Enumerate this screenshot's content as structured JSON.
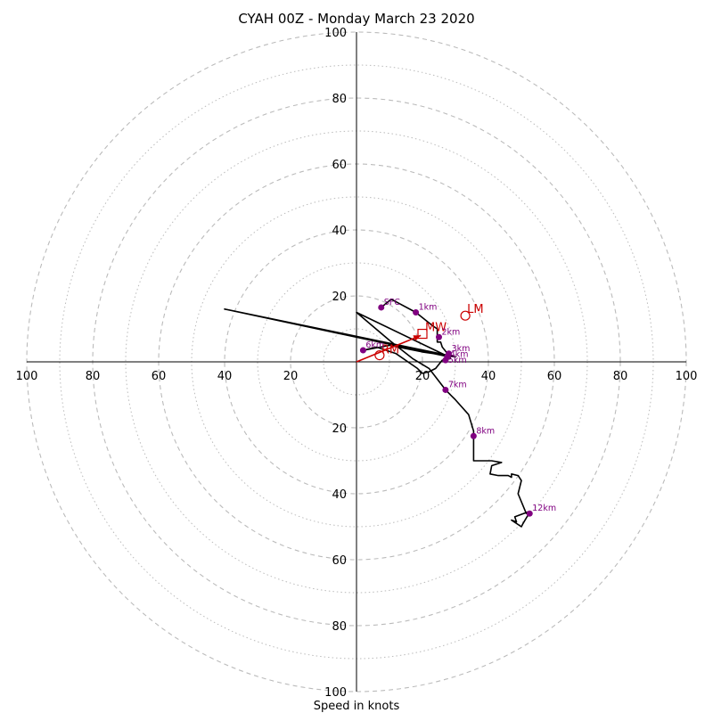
{
  "chart_data": {
    "type": "hodograph",
    "title": "CYAH 00Z - Monday March 23 2020",
    "xlabel": "Speed in knots",
    "ylabel": "",
    "range": [
      -100,
      100
    ],
    "grid": true,
    "rings": {
      "major": [
        20,
        40,
        60,
        80,
        100
      ],
      "minor": [
        10,
        30,
        50,
        70,
        90
      ],
      "major_style": "dashed",
      "minor_style": "dotted"
    },
    "tick_labels": {
      "left": [
        "100",
        "80",
        "60",
        "40",
        "20"
      ],
      "right": [
        "20",
        "40",
        "60",
        "80",
        "100"
      ],
      "top": [
        "100",
        "80",
        "60",
        "40",
        "20"
      ],
      "bottom": [
        "20",
        "40",
        "60",
        "80",
        "100"
      ]
    },
    "hodograph_line": {
      "color": "#000000",
      "points": [
        [
          7.5,
          16.5
        ],
        [
          10.5,
          19.0
        ],
        [
          18.0,
          15.0
        ],
        [
          23.0,
          11.0
        ],
        [
          24.5,
          10.0
        ],
        [
          24.5,
          6.0
        ],
        [
          25.5,
          6.0
        ],
        [
          26.0,
          4.5
        ],
        [
          28.0,
          2.0
        ],
        [
          28.5,
          1.0
        ],
        [
          26.0,
          0.5
        ],
        [
          24.0,
          -2.0
        ],
        [
          22.0,
          -3.0
        ],
        [
          20.0,
          -3.5
        ],
        [
          18.5,
          -2.0
        ],
        [
          12.0,
          2.5
        ],
        [
          6.0,
          4.5
        ],
        [
          2.0,
          3.5
        ],
        [
          10.0,
          5.0
        ],
        [
          20.0,
          3.0
        ],
        [
          27.0,
          2.0
        ],
        [
          30.0,
          1.5
        ],
        [
          -40.0,
          16.0
        ],
        [
          28.0,
          1.5
        ],
        [
          0.0,
          15.0
        ],
        [
          10.0,
          6.5
        ],
        [
          17.0,
          1.0
        ],
        [
          22.0,
          -2.0
        ],
        [
          27.0,
          -8.5
        ],
        [
          30.0,
          -11.5
        ],
        [
          34.0,
          -16.0
        ],
        [
          35.5,
          -21.0
        ],
        [
          35.5,
          -30.0
        ],
        [
          41.0,
          -30.0
        ],
        [
          44.0,
          -30.5
        ],
        [
          41.0,
          -31.5
        ],
        [
          40.5,
          -34.0
        ],
        [
          43.0,
          -34.5
        ],
        [
          46.0,
          -34.5
        ],
        [
          47.0,
          -35.0
        ],
        [
          47.0,
          -34.0
        ],
        [
          49.0,
          -34.5
        ],
        [
          50.0,
          -36.0
        ],
        [
          49.0,
          -40.0
        ],
        [
          51.5,
          -46.0
        ],
        [
          52.0,
          -45.5
        ],
        [
          48.0,
          -47.0
        ],
        [
          48.5,
          -48.5
        ],
        [
          47.0,
          -48.0
        ],
        [
          50.0,
          -50.0
        ],
        [
          50.5,
          -49.0
        ],
        [
          52.0,
          -46.5
        ]
      ]
    },
    "height_markers": [
      {
        "label": "SFC",
        "u": 7.5,
        "v": 16.5
      },
      {
        "label": "1km",
        "u": 18.0,
        "v": 15.0
      },
      {
        "label": "2km",
        "u": 25.0,
        "v": 7.5
      },
      {
        "label": "3km",
        "u": 28.0,
        "v": 2.5
      },
      {
        "label": "4km",
        "u": 27.5,
        "v": 1.5
      },
      {
        "label": "5km",
        "u": 27.0,
        "v": 0.5
      },
      {
        "label": "6km",
        "u": 2.0,
        "v": 3.5
      },
      {
        "label": "7km",
        "u": 27.0,
        "v": -8.5
      },
      {
        "label": "8km",
        "u": 35.5,
        "v": -22.5
      },
      {
        "label": "12km",
        "u": 52.5,
        "v": -46.0
      }
    ],
    "mean_wind": {
      "label": "MW",
      "u": 20.0,
      "v": 8.5,
      "marker": "square"
    },
    "right_mover": {
      "label": "RM",
      "u": 7.0,
      "v": 2.0,
      "marker": "circle"
    },
    "left_mover": {
      "label": "LM",
      "u": 33.0,
      "v": 14.0,
      "marker": "circle"
    },
    "shear_vector": {
      "from": [
        0,
        0
      ],
      "to": [
        19.5,
        8.0
      ]
    },
    "colors": {
      "hodograph": "#000000",
      "height_markers": "#800080",
      "storm_motion": "#cc0000",
      "grid": "#bbbbbb",
      "axes": "#000000"
    }
  }
}
